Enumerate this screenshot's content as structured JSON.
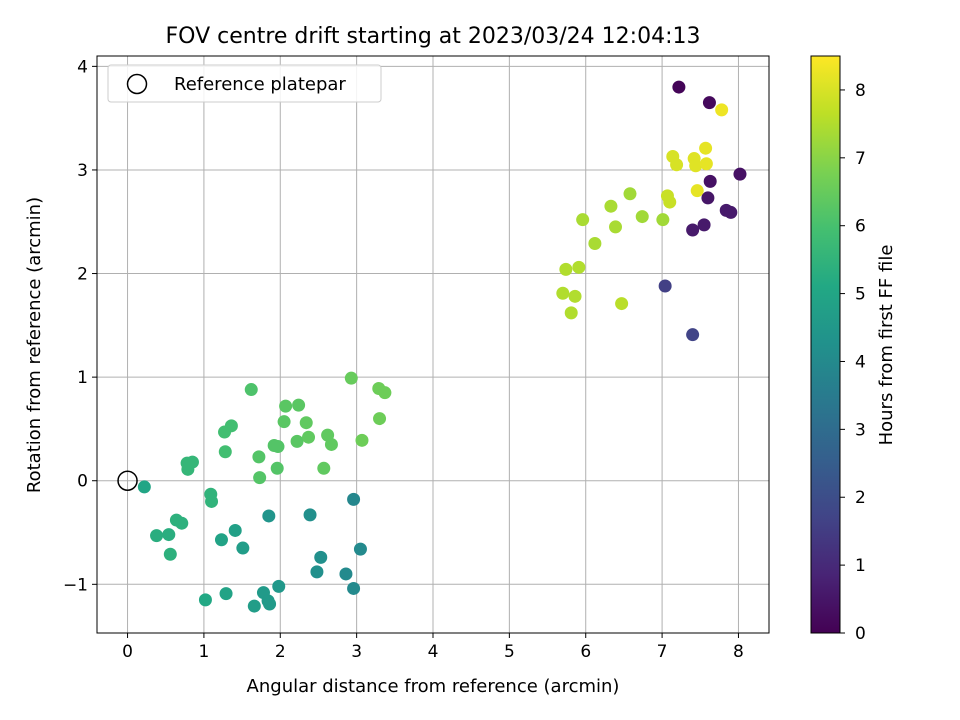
{
  "chart_data": {
    "type": "scatter",
    "title": "FOV centre drift starting at 2023/03/24 12:04:13",
    "xlabel": "Angular distance from reference (arcmin)",
    "ylabel": "Rotation from reference (arcmin)",
    "colorbar_label": "Hours from first FF file",
    "colormap": "viridis",
    "xlim": [
      -0.4,
      8.4
    ],
    "ylim": [
      -1.47,
      4.1
    ],
    "clim": [
      0,
      8.5
    ],
    "xticks": [
      0,
      1,
      2,
      3,
      4,
      5,
      6,
      7,
      8
    ],
    "xtick_labels": [
      "0",
      "1",
      "2",
      "3",
      "4",
      "5",
      "6",
      "7",
      "8"
    ],
    "yticks": [
      -1,
      0,
      1,
      2,
      3,
      4
    ],
    "ytick_labels": [
      "−1",
      "0",
      "1",
      "2",
      "3",
      "4"
    ],
    "cticks": [
      0,
      1,
      2,
      3,
      4,
      5,
      6,
      7,
      8
    ],
    "ctick_labels": [
      "0",
      "1",
      "2",
      "3",
      "4",
      "5",
      "6",
      "7",
      "8"
    ],
    "grid": true,
    "legend": {
      "placement": "upper-left",
      "label": "Reference platepar"
    },
    "reference_point": {
      "x": 0,
      "y": 0
    },
    "points": [
      {
        "x": 0.22,
        "y": -0.06,
        "c": 5.0
      },
      {
        "x": 0.38,
        "y": -0.53,
        "c": 5.3
      },
      {
        "x": 0.54,
        "y": -0.52,
        "c": 5.3
      },
      {
        "x": 0.56,
        "y": -0.71,
        "c": 5.4
      },
      {
        "x": 0.64,
        "y": -0.38,
        "c": 5.4
      },
      {
        "x": 0.71,
        "y": -0.41,
        "c": 5.4
      },
      {
        "x": 0.78,
        "y": 0.17,
        "c": 5.6
      },
      {
        "x": 0.79,
        "y": 0.11,
        "c": 5.6
      },
      {
        "x": 0.85,
        "y": 0.18,
        "c": 5.6
      },
      {
        "x": 1.02,
        "y": -1.15,
        "c": 5.1
      },
      {
        "x": 1.09,
        "y": -0.13,
        "c": 5.5
      },
      {
        "x": 1.1,
        "y": -0.2,
        "c": 5.5
      },
      {
        "x": 1.23,
        "y": -0.57,
        "c": 4.9
      },
      {
        "x": 1.27,
        "y": 0.47,
        "c": 5.9
      },
      {
        "x": 1.28,
        "y": 0.28,
        "c": 5.9
      },
      {
        "x": 1.29,
        "y": -1.09,
        "c": 4.9
      },
      {
        "x": 1.36,
        "y": 0.53,
        "c": 5.9
      },
      {
        "x": 1.41,
        "y": -0.48,
        "c": 4.8
      },
      {
        "x": 1.51,
        "y": -0.65,
        "c": 4.7
      },
      {
        "x": 1.62,
        "y": 0.88,
        "c": 6.1
      },
      {
        "x": 1.66,
        "y": -1.21,
        "c": 4.7
      },
      {
        "x": 1.72,
        "y": 0.23,
        "c": 6.2
      },
      {
        "x": 1.73,
        "y": 0.03,
        "c": 6.2
      },
      {
        "x": 1.78,
        "y": -1.08,
        "c": 4.6
      },
      {
        "x": 1.84,
        "y": -1.16,
        "c": 4.6
      },
      {
        "x": 1.85,
        "y": -0.34,
        "c": 4.4
      },
      {
        "x": 1.86,
        "y": -1.19,
        "c": 4.6
      },
      {
        "x": 1.92,
        "y": 0.34,
        "c": 6.2
      },
      {
        "x": 1.96,
        "y": 0.12,
        "c": 6.2
      },
      {
        "x": 1.97,
        "y": 0.33,
        "c": 6.2
      },
      {
        "x": 1.98,
        "y": -1.02,
        "c": 4.5
      },
      {
        "x": 2.05,
        "y": 0.57,
        "c": 6.3
      },
      {
        "x": 2.07,
        "y": 0.72,
        "c": 6.3
      },
      {
        "x": 2.22,
        "y": 0.38,
        "c": 6.3
      },
      {
        "x": 2.24,
        "y": 0.73,
        "c": 6.3
      },
      {
        "x": 2.34,
        "y": 0.56,
        "c": 6.4
      },
      {
        "x": 2.37,
        "y": 0.42,
        "c": 6.4
      },
      {
        "x": 2.39,
        "y": -0.33,
        "c": 4.2
      },
      {
        "x": 2.48,
        "y": -0.88,
        "c": 4.2
      },
      {
        "x": 2.53,
        "y": -0.74,
        "c": 4.2
      },
      {
        "x": 2.57,
        "y": 0.12,
        "c": 6.4
      },
      {
        "x": 2.62,
        "y": 0.44,
        "c": 6.4
      },
      {
        "x": 2.67,
        "y": 0.35,
        "c": 6.4
      },
      {
        "x": 2.86,
        "y": -0.9,
        "c": 4.0
      },
      {
        "x": 2.93,
        "y": 0.99,
        "c": 6.5
      },
      {
        "x": 2.96,
        "y": -1.04,
        "c": 4.0
      },
      {
        "x": 2.96,
        "y": -0.18,
        "c": 3.9
      },
      {
        "x": 3.05,
        "y": -0.66,
        "c": 4.0
      },
      {
        "x": 3.07,
        "y": 0.39,
        "c": 6.6
      },
      {
        "x": 3.29,
        "y": 0.89,
        "c": 6.6
      },
      {
        "x": 3.3,
        "y": 0.6,
        "c": 6.6
      },
      {
        "x": 3.37,
        "y": 0.85,
        "c": 6.6
      },
      {
        "x": 5.7,
        "y": 1.81,
        "c": 7.5
      },
      {
        "x": 5.74,
        "y": 2.04,
        "c": 7.5
      },
      {
        "x": 5.81,
        "y": 1.62,
        "c": 7.5
      },
      {
        "x": 5.86,
        "y": 1.78,
        "c": 7.5
      },
      {
        "x": 5.91,
        "y": 2.06,
        "c": 7.5
      },
      {
        "x": 5.96,
        "y": 2.52,
        "c": 7.4
      },
      {
        "x": 6.12,
        "y": 2.29,
        "c": 7.4
      },
      {
        "x": 6.33,
        "y": 2.65,
        "c": 7.4
      },
      {
        "x": 6.39,
        "y": 2.45,
        "c": 7.4
      },
      {
        "x": 6.47,
        "y": 1.71,
        "c": 7.6
      },
      {
        "x": 6.58,
        "y": 2.77,
        "c": 7.3
      },
      {
        "x": 6.74,
        "y": 2.55,
        "c": 7.3
      },
      {
        "x": 7.01,
        "y": 2.52,
        "c": 7.3
      },
      {
        "x": 7.04,
        "y": 1.88,
        "c": 1.6
      },
      {
        "x": 7.07,
        "y": 2.75,
        "c": 7.8
      },
      {
        "x": 7.1,
        "y": 2.69,
        "c": 7.8
      },
      {
        "x": 7.14,
        "y": 3.13,
        "c": 8.0
      },
      {
        "x": 7.19,
        "y": 3.05,
        "c": 8.0
      },
      {
        "x": 7.22,
        "y": 3.8,
        "c": 0.1
      },
      {
        "x": 7.4,
        "y": 1.41,
        "c": 1.7
      },
      {
        "x": 7.4,
        "y": 2.42,
        "c": 0.6
      },
      {
        "x": 7.42,
        "y": 3.11,
        "c": 8.1
      },
      {
        "x": 7.44,
        "y": 3.04,
        "c": 8.1
      },
      {
        "x": 7.46,
        "y": 2.8,
        "c": 8.2
      },
      {
        "x": 7.55,
        "y": 2.47,
        "c": 0.6
      },
      {
        "x": 7.57,
        "y": 3.21,
        "c": 8.2
      },
      {
        "x": 7.58,
        "y": 3.06,
        "c": 8.2
      },
      {
        "x": 7.6,
        "y": 2.73,
        "c": 0.5
      },
      {
        "x": 7.62,
        "y": 3.65,
        "c": 0.2
      },
      {
        "x": 7.63,
        "y": 2.89,
        "c": 0.4
      },
      {
        "x": 7.78,
        "y": 3.58,
        "c": 8.3
      },
      {
        "x": 7.84,
        "y": 2.61,
        "c": 0.6
      },
      {
        "x": 7.9,
        "y": 2.59,
        "c": 0.6
      },
      {
        "x": 8.02,
        "y": 2.96,
        "c": 0.4
      }
    ]
  }
}
